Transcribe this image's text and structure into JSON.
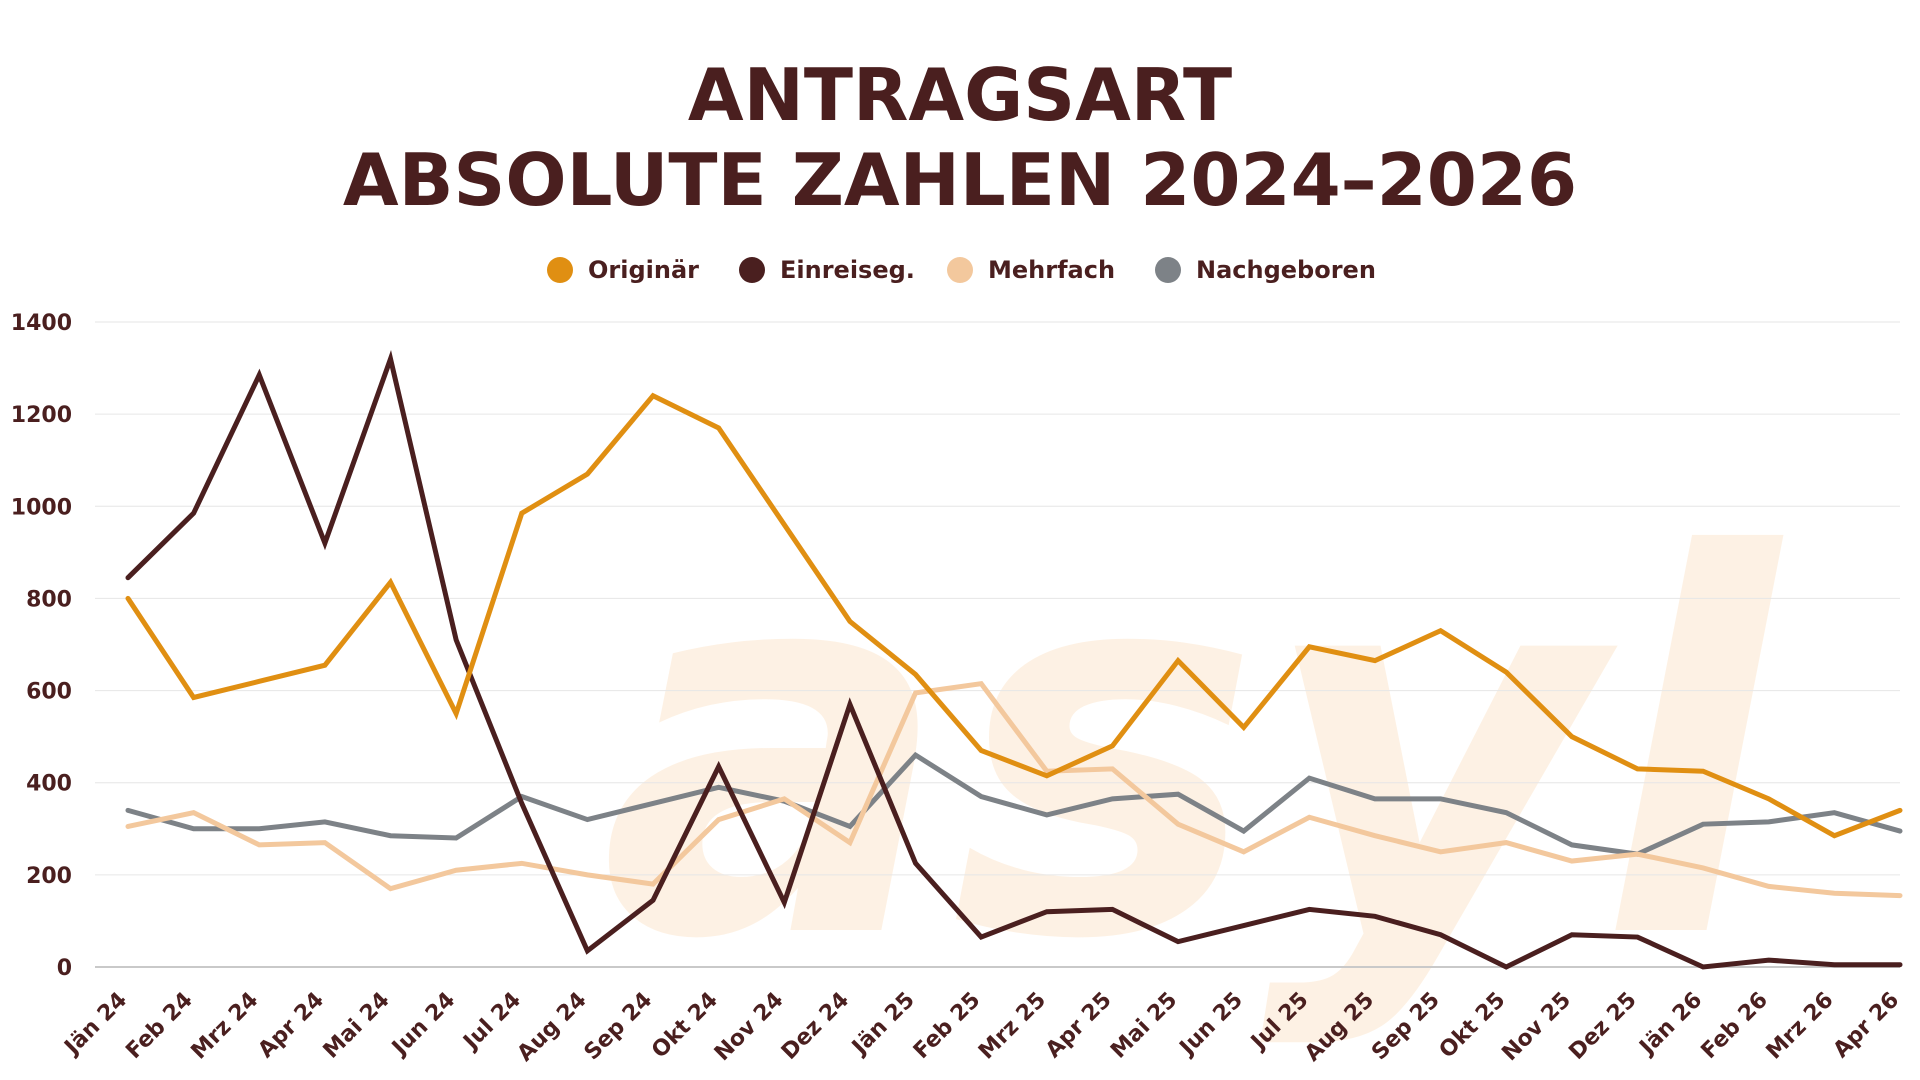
{
  "chart_data": {
    "type": "line",
    "title_lines": [
      "ANTRAGSART",
      "ABSOLUTE ZAHLEN 2024–2026"
    ],
    "xlabel": "",
    "ylabel": "",
    "ylim": [
      0,
      1400
    ],
    "yticks": [
      "0",
      "200",
      "400",
      "600",
      "800",
      "1000",
      "1200",
      "1400"
    ],
    "grid": true,
    "legend_position": "top-center",
    "watermark": "asyl",
    "categories": [
      "Jän 24",
      "Feb 24",
      "Mrz 24",
      "Apr 24",
      "Mai 24",
      "Jun 24",
      "Jul 24",
      "Aug 24",
      "Sep 24",
      "Okt 24",
      "Nov 24",
      "Dez 24",
      "Jän 25",
      "Feb 25",
      "Mrz 25",
      "Apr 25",
      "Mai 25",
      "Jun 25",
      "Jul 25",
      "Aug 25",
      "Sep 25",
      "Okt 25",
      "Nov 25",
      "Dez 25",
      "Jän 26",
      "Feb 26",
      "Mrz 26",
      "Apr 26"
    ],
    "series": [
      {
        "name": "Originär",
        "color": "#e08f12",
        "values": [
          800,
          585,
          620,
          655,
          835,
          550,
          985,
          1070,
          1240,
          1170,
          960,
          750,
          635,
          470,
          415,
          480,
          665,
          520,
          695,
          665,
          730,
          640,
          500,
          430,
          425,
          365,
          285,
          340
        ]
      },
      {
        "name": "Einreiseg.",
        "color": "#4a1f1f",
        "values": [
          845,
          985,
          1285,
          920,
          1320,
          710,
          355,
          35,
          145,
          435,
          140,
          570,
          225,
          65,
          120,
          125,
          55,
          90,
          125,
          110,
          70,
          0,
          70,
          65,
          0,
          15,
          5,
          5
        ]
      },
      {
        "name": "Mehrfach",
        "color": "#f3c89d",
        "values": [
          305,
          335,
          265,
          270,
          170,
          210,
          225,
          200,
          180,
          320,
          365,
          270,
          595,
          615,
          425,
          430,
          310,
          250,
          325,
          285,
          250,
          270,
          230,
          245,
          215,
          175,
          160,
          155
        ]
      },
      {
        "name": "Nachgeboren",
        "color": "#7d8287",
        "values": [
          340,
          300,
          300,
          315,
          285,
          280,
          370,
          320,
          355,
          390,
          360,
          305,
          460,
          370,
          330,
          365,
          375,
          295,
          410,
          365,
          365,
          335,
          265,
          245,
          310,
          315,
          335,
          295
        ]
      }
    ]
  }
}
